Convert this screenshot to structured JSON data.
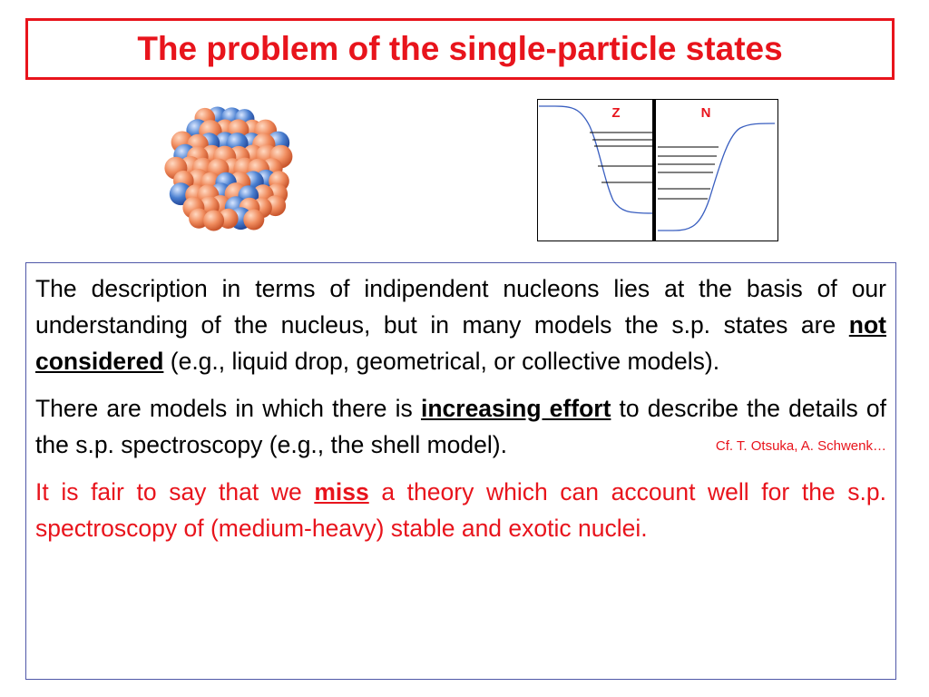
{
  "title": "The problem of the single-particle states",
  "diagram": {
    "label_z": "Z",
    "label_n": "N"
  },
  "paragraphs": [
    {
      "pre": "The description in terms of indipendent nucleons lies at the basis of our understanding of the nucleus, but in many models the s.p. states are ",
      "emphasis": "not considered",
      "post": " (e.g., liquid drop, geometrical, or collective models)."
    },
    {
      "pre": "There are models in which there is ",
      "emphasis": "increasing effort",
      "post": " to describe the details of the s.p. spectroscopy (e.g., the shell model).",
      "citation": "Cf. T. Otsuka, A. Schwenk…"
    },
    {
      "pre": "It is fair to say that we ",
      "emphasis": "miss",
      "post": " a theory which can account well for the s.p. spectroscopy of (medium-heavy) stable and exotic nuclei."
    }
  ],
  "colors": {
    "accent_red": "#e8141c",
    "proton_blue": "#4a7fd0",
    "neutron_orange": "#f08c5e",
    "box_border": "#5058a8",
    "curve_blue": "#3a5fc0"
  }
}
